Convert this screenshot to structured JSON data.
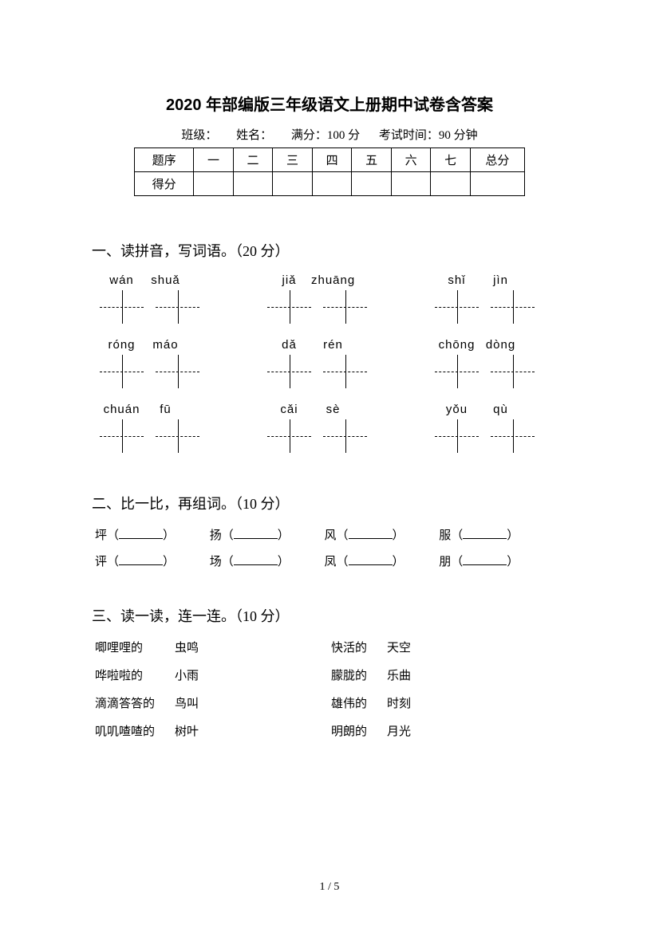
{
  "title": "2020 年部编版三年级语文上册期中试卷含答案",
  "info": {
    "class_label": "班级：",
    "name_label": "姓名：",
    "full_score_label": "满分：100 分",
    "time_label": "考试时间：90 分钟"
  },
  "score_table": {
    "row1": [
      "题序",
      "一",
      "二",
      "三",
      "四",
      "五",
      "六",
      "七",
      "总分"
    ],
    "row2_label": "得分"
  },
  "section1": {
    "title": "一、读拼音，写词语。（20 分）",
    "items": [
      {
        "p1": "wán",
        "p2": "shuǎ"
      },
      {
        "p1": "jiǎ",
        "p2": "zhuāng"
      },
      {
        "p1": "shǐ",
        "p2": "jìn"
      },
      {
        "p1": "róng",
        "p2": "máo"
      },
      {
        "p1": "dǎ",
        "p2": "rén"
      },
      {
        "p1": "chōng",
        "p2": "dòng"
      },
      {
        "p1": "chuán",
        "p2": "fū"
      },
      {
        "p1": "cǎi",
        "p2": "sè"
      },
      {
        "p1": "yǒu",
        "p2": "qù"
      }
    ]
  },
  "section2": {
    "title": "二、比一比，再组词。（10 分）",
    "rows": [
      [
        "坪",
        "扬",
        "风",
        "服"
      ],
      [
        "评",
        "场",
        "凤",
        "朋"
      ]
    ]
  },
  "section3": {
    "title": "三、读一读，连一连。（10 分）",
    "left": {
      "col1": [
        "唧哩哩的",
        "哗啦啦的",
        "滴滴答答的",
        "叽叽喳喳的"
      ],
      "col2": [
        "虫鸣",
        "小雨",
        "鸟叫",
        "树叶"
      ]
    },
    "right": {
      "col1": [
        "快活的",
        "朦胧的",
        "雄伟的",
        "明朗的"
      ],
      "col2": [
        "天空",
        "乐曲",
        "时刻",
        "月光"
      ]
    }
  },
  "page_number": "1 / 5"
}
